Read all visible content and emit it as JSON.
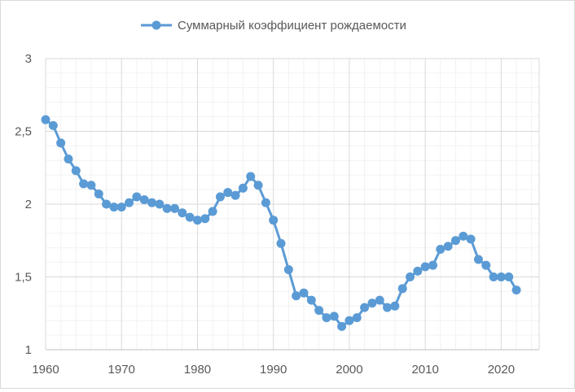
{
  "chart_data": {
    "type": "line",
    "title": "",
    "xlabel": "",
    "ylabel": "",
    "legend_position": "top-center",
    "grid": true,
    "series": [
      {
        "name": "Суммарный коэффициент рождаемости",
        "color": "#5b9bd5",
        "x": [
          1960,
          1961,
          1962,
          1963,
          1964,
          1965,
          1966,
          1967,
          1968,
          1969,
          1970,
          1971,
          1972,
          1973,
          1974,
          1975,
          1976,
          1977,
          1978,
          1979,
          1980,
          1981,
          1982,
          1983,
          1984,
          1985,
          1986,
          1987,
          1988,
          1989,
          1990,
          1991,
          1992,
          1993,
          1994,
          1995,
          1996,
          1997,
          1998,
          1999,
          2000,
          2001,
          2002,
          2003,
          2004,
          2005,
          2006,
          2007,
          2008,
          2009,
          2010,
          2011,
          2012,
          2013,
          2014,
          2015,
          2016,
          2017,
          2018,
          2019,
          2020,
          2021,
          2022
        ],
        "values": [
          2.58,
          2.54,
          2.42,
          2.31,
          2.23,
          2.14,
          2.13,
          2.07,
          2.0,
          1.98,
          1.98,
          2.01,
          2.05,
          2.03,
          2.01,
          2.0,
          1.97,
          1.97,
          1.94,
          1.91,
          1.89,
          1.9,
          1.95,
          2.05,
          2.08,
          2.06,
          2.11,
          2.19,
          2.13,
          2.01,
          1.89,
          1.73,
          1.55,
          1.37,
          1.39,
          1.34,
          1.27,
          1.22,
          1.23,
          1.16,
          1.2,
          1.22,
          1.29,
          1.32,
          1.34,
          1.29,
          1.3,
          1.42,
          1.5,
          1.54,
          1.57,
          1.58,
          1.69,
          1.71,
          1.75,
          1.78,
          1.76,
          1.62,
          1.58,
          1.5,
          1.5,
          1.5,
          1.41
        ]
      }
    ],
    "xlim": [
      1960,
      2025
    ],
    "ylim": [
      1,
      3
    ],
    "xticks": [
      1960,
      1970,
      1980,
      1990,
      2000,
      2010,
      2020
    ],
    "yticks": [
      1,
      1.5,
      2,
      2.5,
      3
    ],
    "ytick_labels": [
      "1",
      "1,5",
      "2",
      "2,5",
      "3"
    ],
    "xtick_labels": [
      "1960",
      "1970",
      "1980",
      "1990",
      "2000",
      "2010",
      "2020"
    ]
  }
}
